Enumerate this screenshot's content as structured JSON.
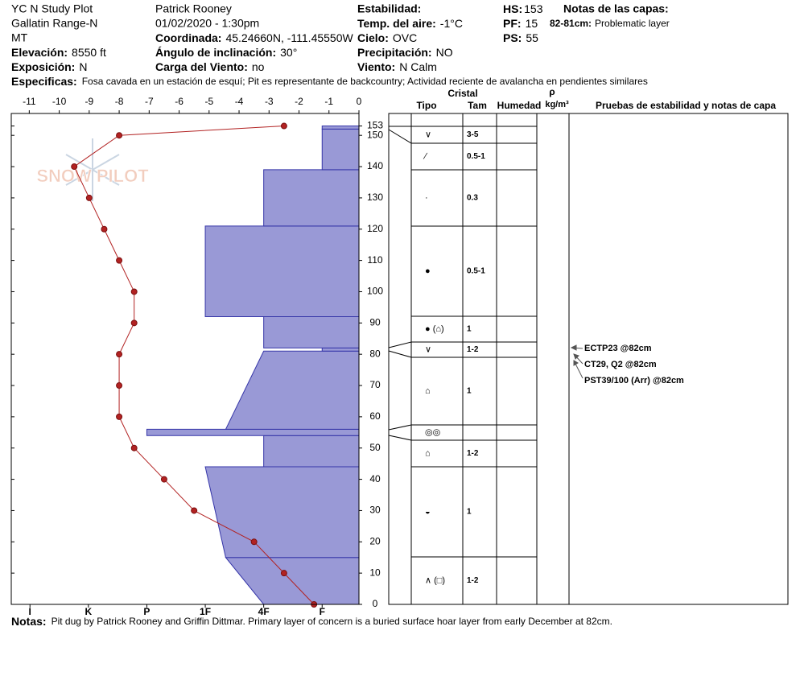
{
  "header": {
    "site": "YC N Study Plot",
    "range": "Gallatin Range-N",
    "state": "MT",
    "elevation": {
      "label": "Elevación:",
      "value": "8550 ft"
    },
    "aspect": {
      "label": "Exposición:",
      "value": "N"
    },
    "observer": "Patrick Rooney",
    "datetime": "01/02/2020 - 1:30pm",
    "coordinates": {
      "label": "Coordinada:",
      "value": "45.24660N, -111.45550W"
    },
    "slope": {
      "label": "Ángulo de inclinación:",
      "value": "30°"
    },
    "wind_loading": {
      "label": "Carga del Viento:",
      "value": "no"
    },
    "stability": {
      "label": "Estabilidad:"
    },
    "air_temp": {
      "label": "Temp. del aire:",
      "value": "-1°C"
    },
    "sky": {
      "label": "Cielo:",
      "value": "OVC"
    },
    "precip": {
      "label": "Precipitación:",
      "value": "NO"
    },
    "wind": {
      "label": "Viento:",
      "value": "N Calm"
    },
    "hs": {
      "label": "HS:",
      "value": 153
    },
    "pf": {
      "label": "PF:",
      "value": 15
    },
    "ps": {
      "label": "PS:",
      "value": 55
    },
    "layer_notes": {
      "label": "Notas de las capas:",
      "items": [
        {
          "label": "82-81cm:",
          "value": "Problematic layer"
        }
      ]
    },
    "specifics": {
      "label": "Especificas:",
      "value": "Fosa cavada en un estación de esquí; Pit es representante de backcountry; Actividad reciente de avalancha en pendientes similares"
    }
  },
  "notes": {
    "label": "Notas:",
    "value": "Pit dug by Patrick Rooney and Griffin Dittmar. Primary layer of concern is a buried surface hoar layer from early December at 82cm."
  },
  "watermark": "SNOW PILOT",
  "chart_data": [
    {
      "type": "line",
      "color": "#b22222",
      "y": [
        153,
        150,
        140,
        130,
        120,
        110,
        100,
        90,
        80,
        70,
        60,
        50,
        40,
        30,
        20,
        10,
        0
      ],
      "x": [
        -2.5,
        -8,
        -9.5,
        -9,
        -8.5,
        -8,
        -7.5,
        -7.5,
        -8,
        -8,
        -8,
        -7.5,
        -6.5,
        -5.5,
        -3.5,
        -2.5,
        -1.5
      ],
      "xlim": [
        -11.6,
        0
      ],
      "xticks": [
        -11,
        -10,
        -9,
        -8,
        -7,
        -6,
        -5,
        -4,
        -3,
        -2,
        -1,
        0
      ],
      "ylim": [
        0,
        157
      ],
      "yticks": [
        0,
        10,
        20,
        30,
        40,
        50,
        60,
        70,
        80,
        90,
        100,
        110,
        120,
        130,
        140,
        150,
        153
      ]
    },
    {
      "type": "bar",
      "color": "#9999d6",
      "xlim": [
        6.32,
        0.37
      ],
      "xticks": [
        {
          "value": 6,
          "label": "I"
        },
        {
          "value": 5,
          "label": "K"
        },
        {
          "value": 4,
          "label": "P"
        },
        {
          "value": 3,
          "label": "1F"
        },
        {
          "value": 2,
          "label": "4F"
        },
        {
          "value": 1,
          "label": "F"
        }
      ],
      "layers": [
        {
          "bottom": 0,
          "top": 15,
          "hardness_bottom": 2,
          "hardness_top": 2.65
        },
        {
          "bottom": 15,
          "top": 44,
          "hardness_bottom": 2.65,
          "hardness_top": 3
        },
        {
          "bottom": 44,
          "top": 54,
          "hardness_bottom": 2,
          "hardness_top": 2
        },
        {
          "bottom": 54,
          "top": 56,
          "hardness_bottom": 4,
          "hardness_top": 4
        },
        {
          "bottom": 56,
          "top": 81,
          "hardness_bottom": 2.65,
          "hardness_top": 2
        },
        {
          "bottom": 81,
          "top": 82,
          "hardness_bottom": 1,
          "hardness_top": 1
        },
        {
          "bottom": 82,
          "top": 92,
          "hardness_bottom": 2,
          "hardness_top": 2
        },
        {
          "bottom": 92,
          "top": 121,
          "hardness_bottom": 3,
          "hardness_top": 3
        },
        {
          "bottom": 121,
          "top": 139,
          "hardness_bottom": 2,
          "hardness_top": 2
        },
        {
          "bottom": 139,
          "top": 152,
          "hardness_bottom": 1,
          "hardness_top": 1
        },
        {
          "bottom": 152,
          "top": 153,
          "hardness_bottom": 1,
          "hardness_top": 1
        }
      ]
    }
  ],
  "layers_table": {
    "headers": {
      "crystal": "Cristal",
      "type": "Tipo",
      "size": "Tam",
      "moisture": "Humedad",
      "density": "ρ",
      "density_unit": "kg/m³",
      "tests": "Pruebas de estabilidad y notas de capa"
    },
    "rows": [
      {
        "grain": "∨",
        "size": "3-5"
      },
      {
        "grain": "∕",
        "size": "0.5-1"
      },
      {
        "grain": "·",
        "size": "0.3"
      },
      {
        "grain": "●",
        "size": "0.5-1"
      },
      {
        "grain": "● (⌂)",
        "size": "1"
      },
      {
        "grain": "∨",
        "size": "1-2"
      },
      {
        "grain": "⌂",
        "size": "1"
      },
      {
        "grain": "◎◎"
      },
      {
        "grain": "⌂",
        "size": "1-2"
      },
      {
        "grain": "◒",
        "size": "1"
      },
      {
        "grain": "∧ (□)",
        "size": "1-2"
      }
    ],
    "tests": [
      "ECTP23 @82cm",
      "CT29, Q2 @82cm",
      "PST39/100 (Arr) @82cm"
    ]
  }
}
